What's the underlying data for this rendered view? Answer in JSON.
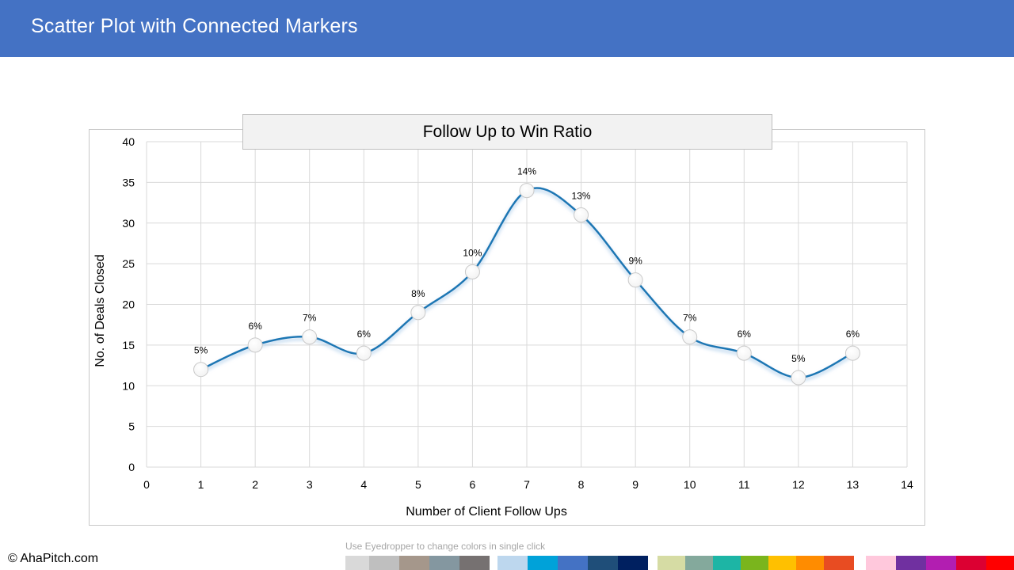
{
  "header": {
    "title": "Scatter Plot with Connected  Markers"
  },
  "chart_data": {
    "type": "scatter",
    "title": "Follow Up to Win Ratio",
    "xlabel": "Number of Client Follow Ups",
    "ylabel": "No. of Deals Closed",
    "xlim": [
      0,
      14
    ],
    "ylim": [
      0,
      40
    ],
    "x_ticks": [
      0,
      1,
      2,
      3,
      4,
      5,
      6,
      7,
      8,
      9,
      10,
      11,
      12,
      13,
      14
    ],
    "y_ticks": [
      0,
      5,
      10,
      15,
      20,
      25,
      30,
      35,
      40
    ],
    "grid": true,
    "smooth_line": true,
    "line_color": "#1F77B4",
    "series": [
      {
        "x": [
          1,
          2,
          3,
          4,
          5,
          6,
          7,
          8,
          9,
          10,
          11,
          12,
          13
        ],
        "y": [
          12,
          15,
          16,
          14,
          19,
          24,
          34,
          31,
          23,
          16,
          14,
          11,
          14
        ],
        "data_labels": [
          "5%",
          "6%",
          "7%",
          "6%",
          "8%",
          "10%",
          "14%",
          "13%",
          "9%",
          "7%",
          "6%",
          "5%",
          "6%"
        ]
      }
    ]
  },
  "footer": {
    "copyright": "© AhaPitch.com",
    "hint": "Use Eyedropper to change colors in single click"
  },
  "palette": {
    "groups": [
      [
        "#D9D9D9",
        "#BFBFBF",
        "#A5978B",
        "#8497A0",
        "#767171"
      ],
      [
        "#BDD7EE",
        "#00A2D9",
        "#4472C4",
        "#1F4E79",
        "#002060"
      ],
      [
        "#D6DCA4",
        "#84A99C",
        "#1DB5A5",
        "#7AB51D",
        "#FFC000",
        "#FF8C00",
        "#E84C22"
      ],
      [
        "#FFC8DC",
        "#7030A0",
        "#B21EB1",
        "#DC0032",
        "#FF0000"
      ]
    ]
  }
}
